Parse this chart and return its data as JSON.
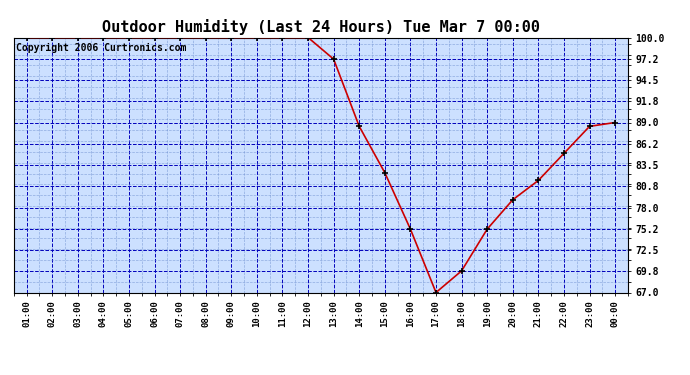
{
  "title": "Outdoor Humidity (Last 24 Hours) Tue Mar 7 00:00",
  "copyright": "Copyright 2006 Curtronics.com",
  "x_labels": [
    "01:00",
    "02:00",
    "03:00",
    "04:00",
    "05:00",
    "06:00",
    "07:00",
    "08:00",
    "09:00",
    "10:00",
    "11:00",
    "12:00",
    "13:00",
    "14:00",
    "15:00",
    "16:00",
    "17:00",
    "18:00",
    "19:00",
    "20:00",
    "21:00",
    "22:00",
    "23:00",
    "00:00"
  ],
  "x_values": [
    1,
    2,
    3,
    4,
    5,
    6,
    7,
    8,
    9,
    10,
    11,
    12,
    13,
    14,
    15,
    16,
    17,
    18,
    19,
    20,
    21,
    22,
    23,
    24
  ],
  "y_values": [
    100,
    100,
    100,
    100,
    100,
    100,
    100,
    100,
    100,
    100,
    100,
    100,
    97.2,
    88.5,
    82.5,
    75.2,
    67.0,
    69.8,
    75.2,
    79.0,
    81.5,
    85.0,
    88.5,
    89.0
  ],
  "y_ticks": [
    67.0,
    69.8,
    72.5,
    75.2,
    78.0,
    80.8,
    83.5,
    86.2,
    89.0,
    91.8,
    94.5,
    97.2,
    100.0
  ],
  "line_color": "#cc0000",
  "marker_color": "#000000",
  "bg_color": "#cce0ff",
  "outer_bg": "#ffffff",
  "grid_color_major": "#0000bb",
  "grid_color_minor": "#6688cc",
  "title_fontsize": 11,
  "copyright_fontsize": 7,
  "ylim": [
    67.0,
    100.0
  ],
  "xlim": [
    0.5,
    24.5
  ]
}
